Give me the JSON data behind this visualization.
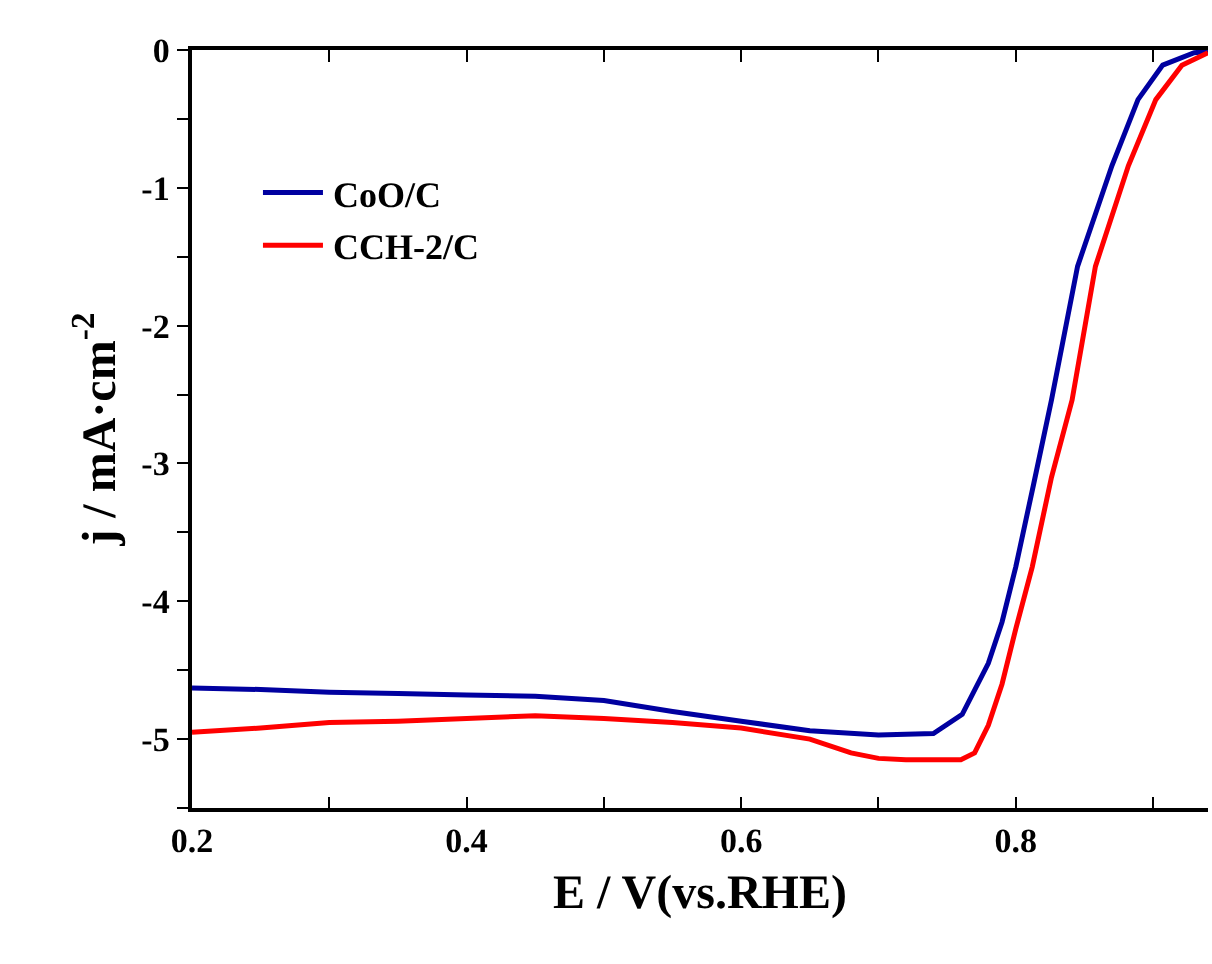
{
  "chart_data": {
    "type": "line",
    "xlabel": "E / V(vs.RHE)",
    "ylabel": "j / mA·cm$^{-2}$",
    "xlim": [
      0.2,
      0.94
    ],
    "ylim": [
      -5.5,
      0
    ],
    "xticks": [
      0.2,
      {
        "value": 0.3,
        "label": null
      },
      0.4,
      {
        "value": 0.5,
        "label": null
      },
      0.6,
      {
        "value": 0.7,
        "label": null
      },
      0.8,
      {
        "value": 0.9,
        "label": null
      }
    ],
    "yticks": [
      {
        "value": -5.5,
        "label": null
      },
      -5,
      {
        "value": -4.5,
        "label": null
      },
      -4,
      {
        "value": -3.5,
        "label": null
      },
      -3,
      {
        "value": -2.5,
        "label": null
      },
      -2,
      {
        "value": -1.5,
        "label": null
      },
      -1,
      {
        "value": -0.5,
        "label": null
      },
      0
    ],
    "legend": "top left",
    "marker": "none",
    "line_style": "solid",
    "series": [
      {
        "name": "CoO/C",
        "color": "#0000a0",
        "x": [
          0.2,
          0.25,
          0.3,
          0.35,
          0.4,
          0.45,
          0.5,
          0.55,
          0.6,
          0.65,
          0.7,
          0.74,
          0.761,
          0.78,
          0.79,
          0.8,
          0.813,
          0.826,
          0.845,
          0.87,
          0.889,
          0.907,
          0.93,
          0.94
        ],
        "values": [
          -4.63,
          -4.64,
          -4.66,
          -4.67,
          -4.68,
          -4.69,
          -4.72,
          -4.8,
          -4.87,
          -4.94,
          -4.97,
          -4.96,
          -4.82,
          -4.45,
          -4.15,
          -3.75,
          -3.15,
          -2.54,
          -1.57,
          -0.84,
          -0.36,
          -0.11,
          -0.02,
          -0.01
        ]
      },
      {
        "name": "CCH-2/C",
        "color": "#ff0000",
        "x": [
          0.2,
          0.25,
          0.3,
          0.35,
          0.4,
          0.45,
          0.5,
          0.55,
          0.6,
          0.65,
          0.68,
          0.7,
          0.72,
          0.76,
          0.77,
          0.78,
          0.79,
          0.8,
          0.812,
          0.826,
          0.841,
          0.858,
          0.882,
          0.902,
          0.921,
          0.94
        ],
        "values": [
          -4.95,
          -4.92,
          -4.88,
          -4.87,
          -4.85,
          -4.83,
          -4.85,
          -4.88,
          -4.92,
          -5.0,
          -5.1,
          -5.14,
          -5.15,
          -5.15,
          -5.1,
          -4.9,
          -4.6,
          -4.2,
          -3.75,
          -3.1,
          -2.54,
          -1.57,
          -0.84,
          -0.36,
          -0.11,
          -0.02
        ]
      }
    ]
  }
}
